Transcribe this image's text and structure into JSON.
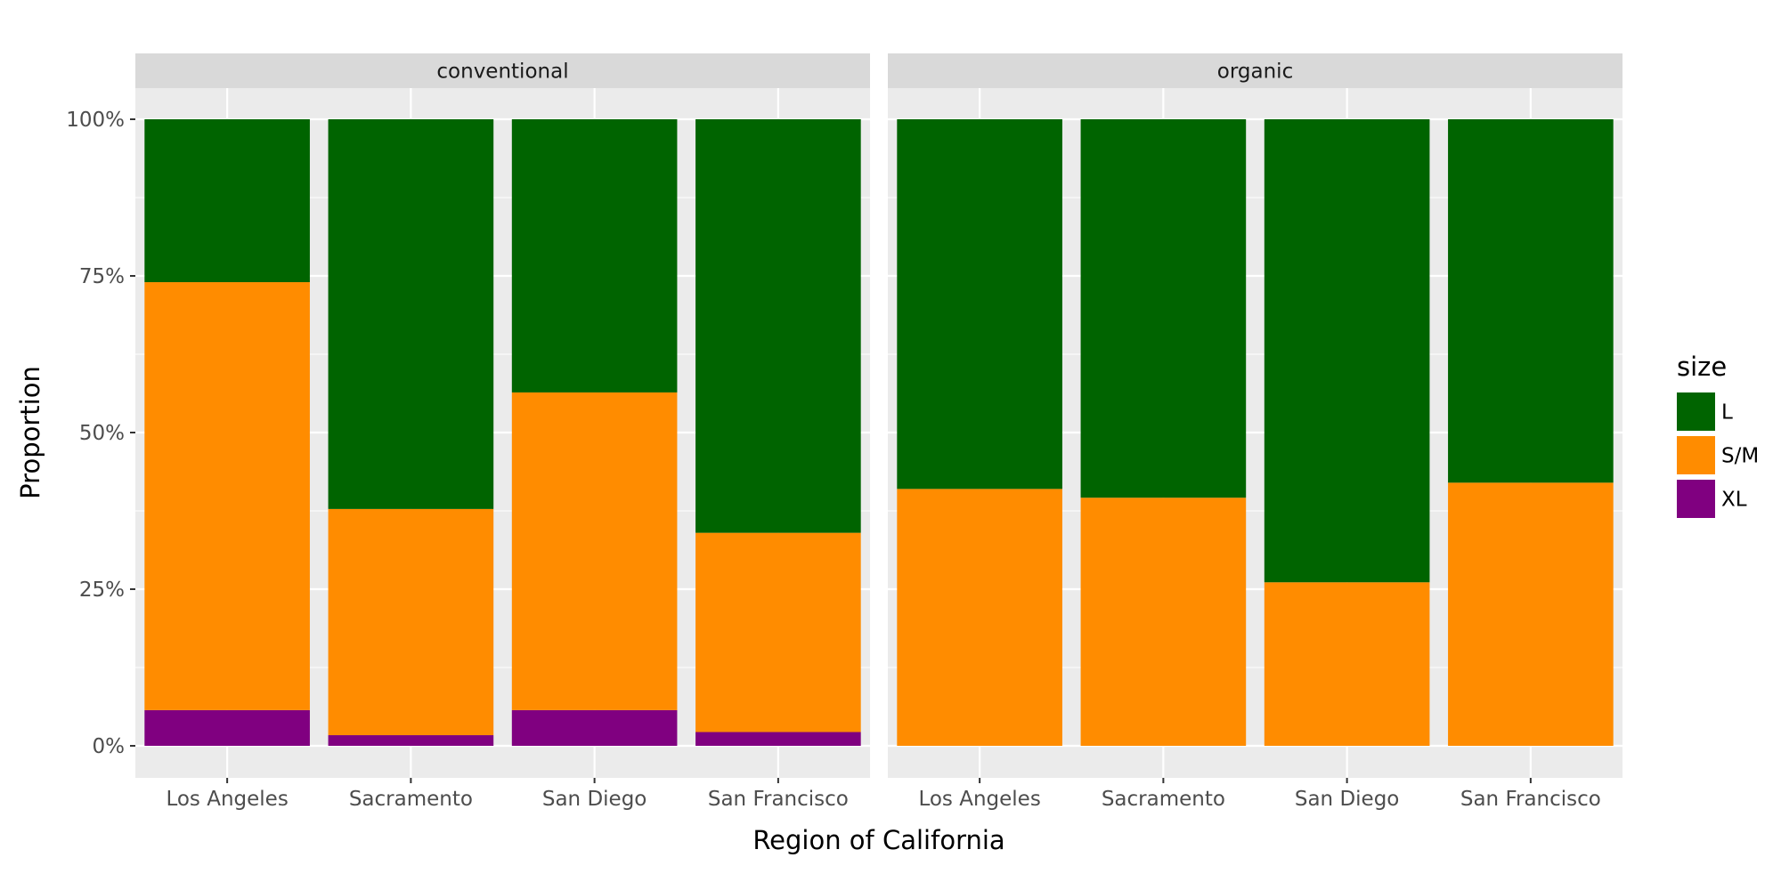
{
  "chart_data": {
    "type": "bar",
    "stacked": "fill",
    "xlabel": "Region of California",
    "ylabel": "Proportion",
    "ylim": [
      0,
      1
    ],
    "yticks": [
      0,
      0.25,
      0.5,
      0.75,
      1.0
    ],
    "ytick_labels": [
      "0%",
      "25%",
      "50%",
      "75%",
      "100%"
    ],
    "categories": [
      "Los Angeles",
      "Sacramento",
      "San Diego",
      "San Francisco"
    ],
    "legend": {
      "title": "size",
      "position": "right",
      "entries": [
        "L",
        "S/M",
        "XL"
      ]
    },
    "colors": {
      "L": "#006400",
      "S/M": "#ff8c00",
      "XL": "#800080"
    },
    "background": {
      "panel": "#ebebeb",
      "strip": "#d9d9d9",
      "grid": "#ffffff"
    },
    "panels": [
      {
        "label": "conventional",
        "series": [
          {
            "name": "XL",
            "values": [
              0.057,
              0.017,
              0.057,
              0.022
            ]
          },
          {
            "name": "S/M",
            "values": [
              0.683,
              0.361,
              0.507,
              0.318
            ]
          },
          {
            "name": "L",
            "values": [
              0.26,
              0.622,
              0.436,
              0.66
            ]
          }
        ]
      },
      {
        "label": "organic",
        "series": [
          {
            "name": "XL",
            "values": [
              0,
              0,
              0,
              0
            ]
          },
          {
            "name": "S/M",
            "values": [
              0.41,
              0.396,
              0.261,
              0.42
            ]
          },
          {
            "name": "L",
            "values": [
              0.59,
              0.604,
              0.739,
              0.58
            ]
          }
        ]
      }
    ]
  }
}
